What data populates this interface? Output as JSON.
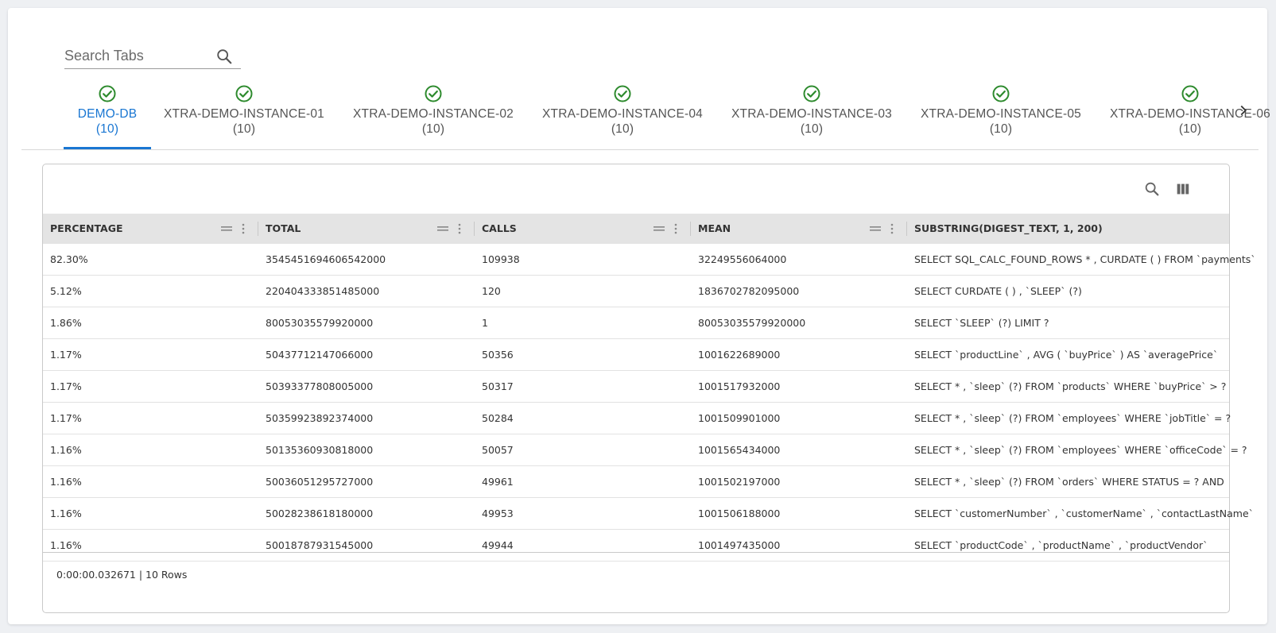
{
  "search": {
    "placeholder": "Search Tabs"
  },
  "tabs": [
    {
      "label": "DEMO-DB",
      "count": "(10)",
      "status": "ok",
      "active": true
    },
    {
      "label": "XTRA-DEMO-INSTANCE-01",
      "count": "(10)",
      "status": "ok",
      "active": false
    },
    {
      "label": "XTRA-DEMO-INSTANCE-02",
      "count": "(10)",
      "status": "ok",
      "active": false
    },
    {
      "label": "XTRA-DEMO-INSTANCE-04",
      "count": "(10)",
      "status": "ok",
      "active": false
    },
    {
      "label": "XTRA-DEMO-INSTANCE-03",
      "count": "(10)",
      "status": "ok",
      "active": false
    },
    {
      "label": "XTRA-DEMO-INSTANCE-05",
      "count": "(10)",
      "status": "ok",
      "active": false
    },
    {
      "label": "XTRA-DEMO-INSTANCE-06",
      "count": "(10)",
      "status": "ok",
      "active": false
    }
  ],
  "colors": {
    "accent": "#1976d2",
    "success": "#2e8b2e"
  },
  "table": {
    "columns": [
      "PERCENTAGE",
      "TOTAL",
      "CALLS",
      "MEAN",
      "SUBSTRING(DIGEST_TEXT, 1, 200)"
    ],
    "rows": [
      [
        "82.30%",
        "3545451694606542000",
        "109938",
        "32249556064000",
        "SELECT SQL_CALC_FOUND_ROWS * , CURDATE ( ) FROM `payments`"
      ],
      [
        "5.12%",
        "220404333851485000",
        "120",
        "1836702782095000",
        "SELECT CURDATE ( ) , `SLEEP` (?)"
      ],
      [
        "1.86%",
        "80053035579920000",
        "1",
        "80053035579920000",
        "SELECT `SLEEP` (?) LIMIT ?"
      ],
      [
        "1.17%",
        "50437712147066000",
        "50356",
        "1001622689000",
        "SELECT `productLine` , AVG ( `buyPrice` ) AS `averagePrice`"
      ],
      [
        "1.17%",
        "50393377808005000",
        "50317",
        "1001517932000",
        "SELECT * , `sleep` (?) FROM `products` WHERE `buyPrice` > ?"
      ],
      [
        "1.17%",
        "50359923892374000",
        "50284",
        "1001509901000",
        "SELECT * , `sleep` (?) FROM `employees` WHERE `jobTitle` = ?"
      ],
      [
        "1.16%",
        "50135360930818000",
        "50057",
        "1001565434000",
        "SELECT * , `sleep` (?) FROM `employees` WHERE `officeCode` = ?"
      ],
      [
        "1.16%",
        "50036051295727000",
        "49961",
        "1001502197000",
        "SELECT * , `sleep` (?) FROM `orders` WHERE STATUS = ? AND"
      ],
      [
        "1.16%",
        "50028238618180000",
        "49953",
        "1001506188000",
        "SELECT `customerNumber` , `customerName` , `contactLastName`"
      ],
      [
        "1.16%",
        "50018787931545000",
        "49944",
        "1001497435000",
        "SELECT `productCode` , `productName` , `productVendor`"
      ]
    ],
    "footer": "0:00:00.032671 | 10 Rows"
  }
}
